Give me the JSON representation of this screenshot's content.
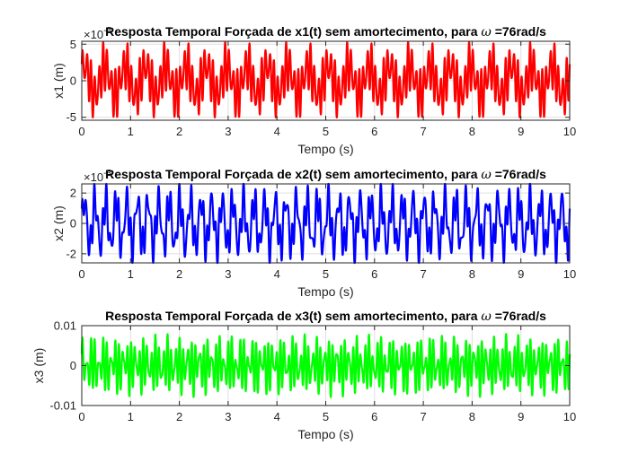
{
  "figure": {
    "background": "#ffffff"
  },
  "chart_data": [
    {
      "type": "line",
      "title_prefix": "Resposta Temporal Forçada de x1(t) sem amortecimento, para ",
      "title_symbol": "ω",
      "title_suffix": " =76rad/s",
      "xlabel": "Tempo (s)",
      "ylabel": "x1 (m)",
      "xlim": [
        0,
        10
      ],
      "ylim": [
        -5.4,
        5.4
      ],
      "xticks": [
        "0",
        "1",
        "2",
        "3",
        "4",
        "5",
        "6",
        "7",
        "8",
        "9",
        "10"
      ],
      "yticks": [
        "-5",
        "0",
        "5"
      ],
      "yexponent": "10^-3",
      "grid": true,
      "color": "#ff0000",
      "series": [
        {
          "signal": "sum of sines",
          "components": [
            [
              2.6,
              12.0
            ],
            [
              2.0,
              2.4
            ],
            [
              1.0,
              16.0
            ]
          ],
          "envelope_max": 5.4,
          "x_range": [
            0,
            10
          ]
        }
      ]
    },
    {
      "type": "line",
      "title_prefix": "Resposta Temporal Forçada de x2(t) sem amortecimento, para ",
      "title_symbol": "ω",
      "title_suffix": " =76rad/s",
      "xlabel": "Tempo (s)",
      "ylabel": "x2 (m)",
      "xlim": [
        0,
        10
      ],
      "ylim": [
        -2.6,
        2.6
      ],
      "xticks": [
        "0",
        "1",
        "2",
        "3",
        "4",
        "5",
        "6",
        "7",
        "8",
        "9",
        "10"
      ],
      "yticks": [
        "-2",
        "0",
        "2"
      ],
      "yexponent": "10^-3",
      "grid": true,
      "color": "#0000ff",
      "series": [
        {
          "signal": "sum of sines",
          "components": [
            [
              1.5,
              4.6
            ],
            [
              0.9,
              12.1
            ],
            [
              0.4,
              16.0
            ]
          ],
          "envelope_max": 2.6,
          "x_range": [
            0,
            10
          ]
        }
      ]
    },
    {
      "type": "line",
      "title_prefix": "Resposta Temporal Forçada de x3(t) sem amortecimento, para ",
      "title_symbol": "ω",
      "title_suffix": " =76rad/s",
      "xlabel": "Tempo (s)",
      "ylabel": "x3 (m)",
      "xlim": [
        0,
        10
      ],
      "ylim": [
        -0.01,
        0.01
      ],
      "xticks": [
        "0",
        "1",
        "2",
        "3",
        "4",
        "5",
        "6",
        "7",
        "8",
        "9",
        "10"
      ],
      "yticks": [
        "-0.01",
        "0",
        "0.01"
      ],
      "grid": true,
      "color": "#00ff00",
      "series": [
        {
          "signal": "sum of sines",
          "components": [
            [
              0.0042,
              12.1
            ],
            [
              0.0026,
              16.0
            ],
            [
              0.0012,
              4.6
            ]
          ],
          "envelope_max": 0.0082,
          "x_range": [
            0,
            10
          ]
        }
      ]
    }
  ]
}
